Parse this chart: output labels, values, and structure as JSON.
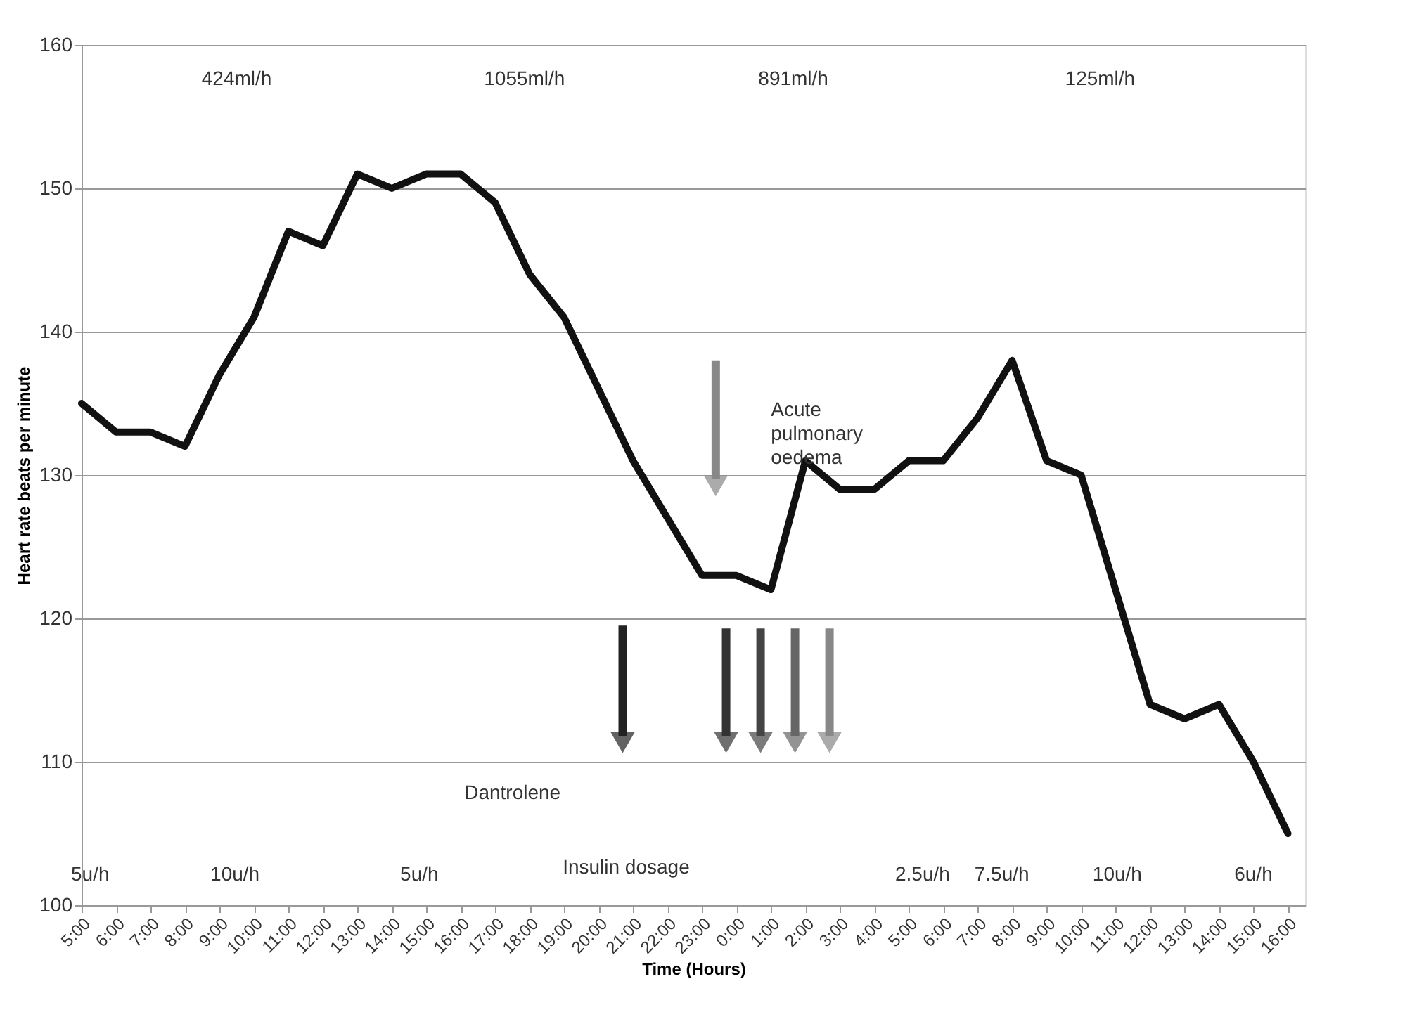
{
  "chart_data": {
    "type": "line",
    "xlabel": "Time (Hours)",
    "ylabel": "Heart rate beats per minute",
    "categories": [
      "5:00",
      "6:00",
      "7:00",
      "8:00",
      "9:00",
      "10:00",
      "11:00",
      "12:00",
      "13:00",
      "14:00",
      "15:00",
      "16:00",
      "17:00",
      "18:00",
      "19:00",
      "20:00",
      "21:00",
      "22:00",
      "23:00",
      "0:00",
      "1:00",
      "2:00",
      "3:00",
      "4:00",
      "5:00",
      "6:00",
      "7:00",
      "8:00",
      "9:00",
      "10:00",
      "11:00",
      "12:00",
      "13:00",
      "14:00",
      "15:00",
      "16:00"
    ],
    "series": [
      {
        "color": "#111111",
        "values": [
          135,
          133,
          133,
          132,
          137,
          141,
          147,
          146,
          151,
          150,
          151,
          151,
          149,
          144,
          141,
          136,
          131,
          127,
          123,
          123,
          122,
          131,
          129,
          129,
          131,
          131,
          134,
          138,
          131,
          130,
          122,
          114,
          113,
          114,
          110,
          105
        ]
      }
    ],
    "ylim": [
      100,
      160
    ],
    "yticks": [
      100,
      110,
      120,
      130,
      140,
      150,
      160
    ],
    "grid": "y",
    "marker": "none",
    "line_style": "solid",
    "annotations": [
      "424ml/h",
      "1055ml/h",
      "891ml/h",
      "125ml/h",
      "5u/h",
      "10u/h",
      "5u/h",
      "2.5u/h",
      "7.5u/h",
      "10u/h",
      "6u/h",
      "Insulin dosage",
      "Dantrolene",
      "Acute pulmonary oedema"
    ]
  }
}
